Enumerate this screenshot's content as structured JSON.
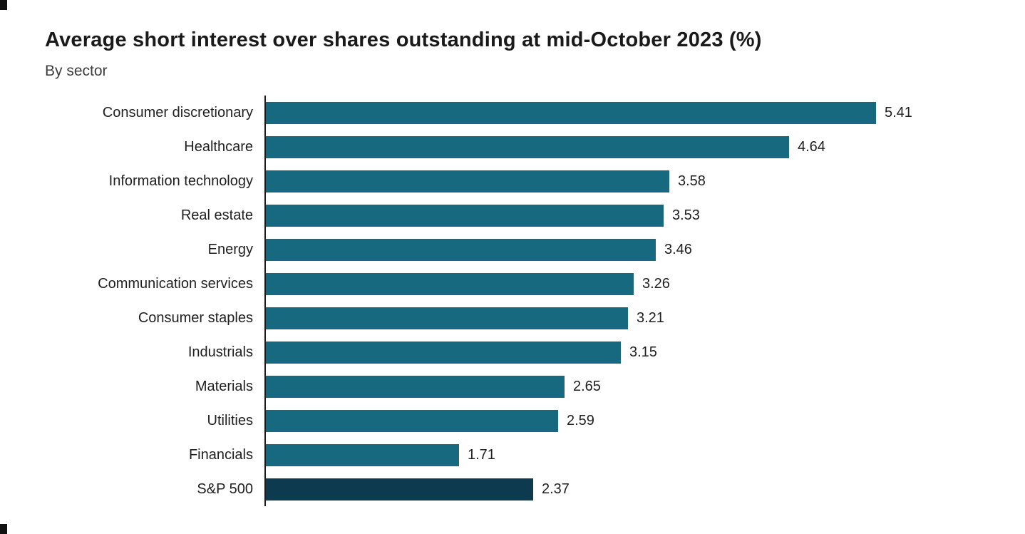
{
  "chart_data": {
    "type": "bar",
    "orientation": "horizontal",
    "title": "Average short interest over shares outstanding at mid-October 2023 (%)",
    "subtitle": "By sector",
    "categories": [
      "Consumer discretionary",
      "Healthcare",
      "Information technology",
      "Real estate",
      "Energy",
      "Communication services",
      "Consumer staples",
      "Industrials",
      "Materials",
      "Utilities",
      "Financials",
      "S&P 500"
    ],
    "values": [
      5.41,
      4.64,
      3.58,
      3.53,
      3.46,
      3.26,
      3.21,
      3.15,
      2.65,
      2.59,
      1.71,
      2.37
    ],
    "value_labels": [
      "5.41",
      "4.64",
      "3.58",
      "3.53",
      "3.46",
      "3.26",
      "3.21",
      "3.15",
      "2.65",
      "2.59",
      "1.71",
      "2.37"
    ],
    "xlim": [
      0,
      5.5
    ],
    "grid": false,
    "legend": "none",
    "bar_color": "#16697e",
    "highlight_category": "S&P 500",
    "highlight_color": "#0d3a4e"
  }
}
